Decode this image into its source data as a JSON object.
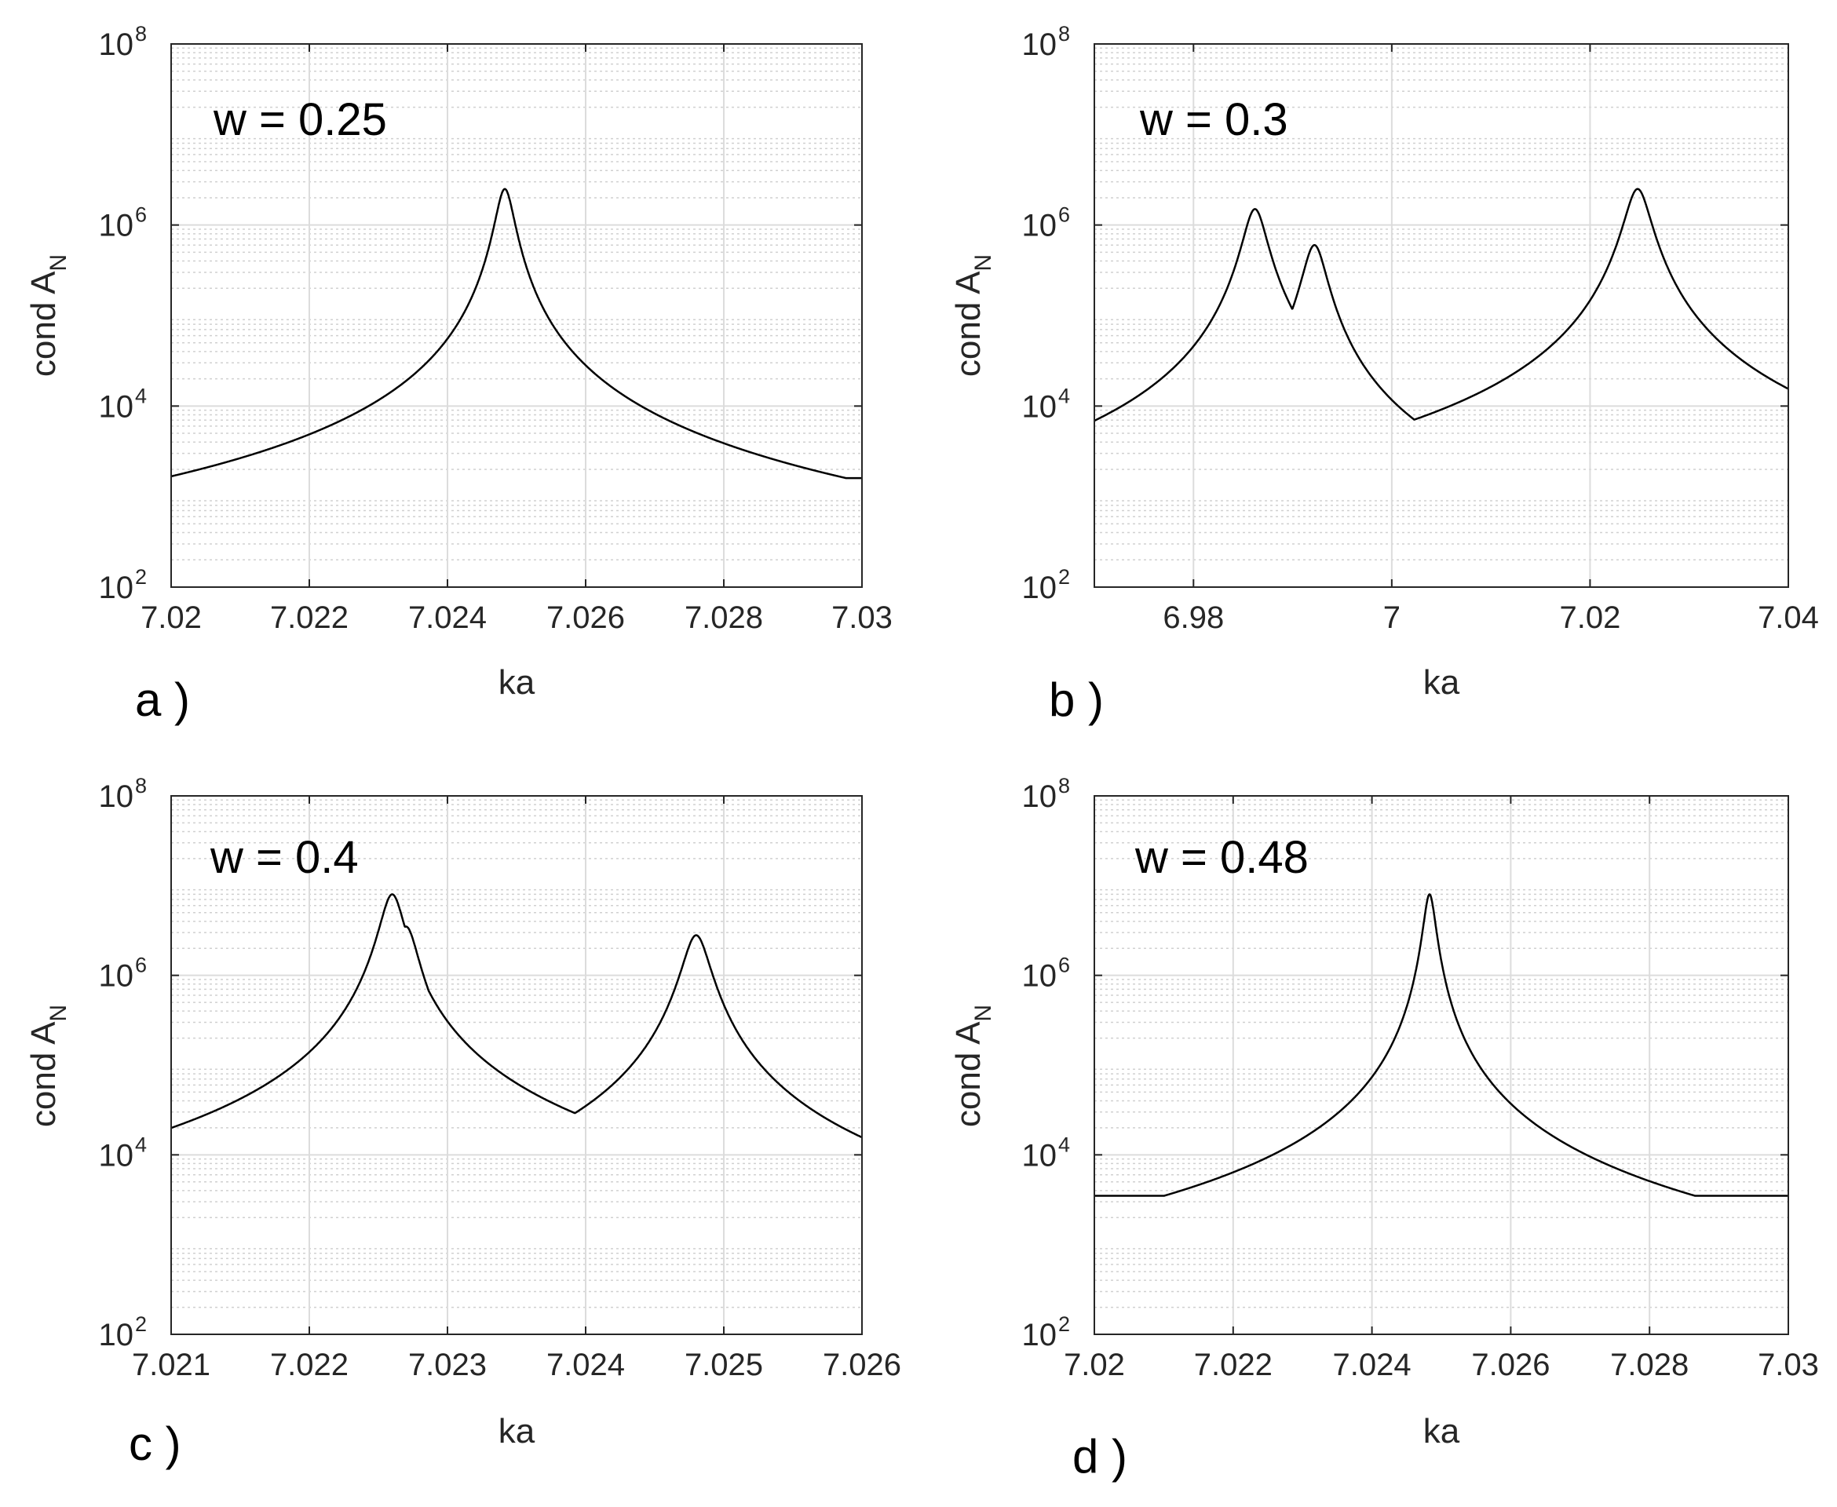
{
  "figure": {
    "colors": {
      "curve": "#000000",
      "axes": "#262626",
      "grid": "#dcdcdc",
      "background": "#ffffff"
    }
  },
  "chart_data": [
    {
      "panel": "a )",
      "type": "line",
      "annotation": "w = 0.25",
      "xlabel": "ka",
      "ylabel": "cond A",
      "ylabel_sub": "N",
      "xlim": [
        7.02,
        7.03
      ],
      "ylim": [
        100,
        100000000
      ],
      "yscale": "log",
      "grid": true,
      "xticks": [
        7.02,
        7.022,
        7.024,
        7.026,
        7.028,
        7.03
      ],
      "xtick_labels": [
        "7.02",
        "7.022",
        "7.024",
        "7.026",
        "7.028",
        "7.03"
      ],
      "yticks": [
        100,
        10000,
        1000000,
        100000000
      ],
      "ytick_base": "10",
      "ytick_exponents": [
        "2",
        "4",
        "6",
        "8"
      ],
      "series": [
        {
          "name": "cond A_N",
          "baseline": 1600,
          "bumps": [],
          "peaks": [
            {
              "ka": 7.02483,
              "peak": 2500000,
              "width": 0.000125
            }
          ]
        }
      ]
    },
    {
      "panel": "b )",
      "type": "line",
      "annotation": "w = 0.3",
      "xlabel": "ka",
      "ylabel": "cond A",
      "ylabel_sub": "N",
      "xlim": [
        6.97,
        7.04
      ],
      "ylim": [
        100,
        100000000
      ],
      "yscale": "log",
      "grid": true,
      "xticks": [
        6.98,
        7.0,
        7.02,
        7.04
      ],
      "xtick_labels": [
        "6.98",
        "7",
        "7.02",
        "7.04"
      ],
      "yticks": [
        100,
        10000,
        1000000,
        100000000
      ],
      "ytick_base": "10",
      "ytick_exponents": [
        "2",
        "4",
        "6",
        "8"
      ],
      "series": [
        {
          "name": "cond A_N",
          "baseline": 500,
          "bumps": [
            {
              "ka": 6.97,
              "amp": 400,
              "width": 0.02
            }
          ],
          "peaks": [
            {
              "ka": 6.9862,
              "peak": 1500000,
              "width": 0.0011
            },
            {
              "ka": 6.9922,
              "peak": 600000,
              "width": 0.0011
            },
            {
              "ka": 7.0248,
              "peak": 2500000,
              "width": 0.0012
            }
          ]
        }
      ]
    },
    {
      "panel": "c )",
      "type": "line",
      "annotation": "w = 0.4",
      "xlabel": "ka",
      "ylabel": "cond A",
      "ylabel_sub": "N",
      "xlim": [
        7.021,
        7.026
      ],
      "ylim": [
        100,
        100000000
      ],
      "yscale": "log",
      "grid": true,
      "xticks": [
        7.021,
        7.022,
        7.023,
        7.024,
        7.025,
        7.026
      ],
      "xtick_labels": [
        "7.021",
        "7.022",
        "7.023",
        "7.024",
        "7.025",
        "7.026"
      ],
      "yticks": [
        100,
        10000,
        1000000,
        100000000
      ],
      "ytick_base": "10",
      "ytick_exponents": [
        "2",
        "4",
        "6",
        "8"
      ],
      "series": [
        {
          "name": "cond A_N",
          "baseline": 3500,
          "bumps": [
            {
              "ka": 7.021,
              "amp": 5000,
              "width": 0.001
            }
          ],
          "peaks": [
            {
              "ka": 7.0226,
              "peak": 8000000,
              "width": 8e-05
            },
            {
              "ka": 7.0227,
              "peak": 3500000,
              "width": 8e-05
            },
            {
              "ka": 7.0248,
              "peak": 2800000,
              "width": 9e-05
            }
          ]
        }
      ]
    },
    {
      "panel": "d )",
      "type": "line",
      "annotation": "w = 0.48",
      "xlabel": "ka",
      "ylabel": "cond A",
      "ylabel_sub": "N",
      "xlim": [
        7.02,
        7.03
      ],
      "ylim": [
        100,
        100000000
      ],
      "yscale": "log",
      "grid": true,
      "xticks": [
        7.02,
        7.022,
        7.024,
        7.026,
        7.028,
        7.03
      ],
      "xtick_labels": [
        "7.02",
        "7.022",
        "7.024",
        "7.026",
        "7.028",
        "7.03"
      ],
      "yticks": [
        100,
        10000,
        1000000,
        100000000
      ],
      "ytick_base": "10",
      "ytick_exponents": [
        "2",
        "4",
        "6",
        "8"
      ],
      "series": [
        {
          "name": "cond A_N",
          "baseline": 3500,
          "bumps": [],
          "peaks": [
            {
              "ka": 7.02483,
              "peak": 8000000,
              "width": 8e-05
            }
          ]
        }
      ]
    }
  ]
}
